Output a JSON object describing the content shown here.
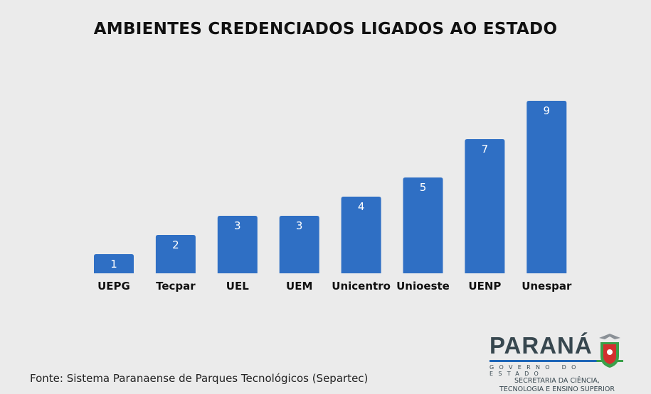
{
  "chart_data": {
    "type": "bar",
    "title": "AMBIENTES CREDENCIADOS LIGADOS AO ESTADO",
    "categories": [
      "UEPG",
      "Tecpar",
      "UEL",
      "UEM",
      "Unicentro",
      "Unioeste",
      "UENP",
      "Unespar"
    ],
    "values": [
      1,
      2,
      3,
      3,
      4,
      5,
      7,
      9
    ],
    "ylim": [
      0,
      9
    ],
    "grid": false,
    "bar_color": "#2f6fc4",
    "data_labels": "inside-top"
  },
  "source": "Fonte: Sistema Paranaense de Parques Tecnológicos (Separtec)",
  "logo": {
    "word": "PARANÁ",
    "gov": "GOVERNO DO ESTADO",
    "sec1": "SECRETARIA DA CIÊNCIA,",
    "sec2": "TECNOLOGIA E ENSINO SUPERIOR"
  }
}
